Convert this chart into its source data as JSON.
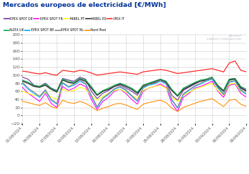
{
  "title": "Mercados europeos de electricidad [€/MWh]",
  "title_color": "#003399",
  "background_color": "#ffffff",
  "ylim": [
    -20,
    200
  ],
  "yticks": [
    -20,
    0,
    20,
    40,
    60,
    80,
    100,
    120,
    140,
    160,
    180,
    200
  ],
  "dates": [
    "01/08/2024",
    "02/08/2024",
    "03/08/2024",
    "04/08/2024",
    "05/08/2024",
    "06/08/2024",
    "07/08/2024",
    "08/08/2024",
    "09/08/2024",
    "10/08/2024",
    "11/08/2024",
    "12/08/2024",
    "13/08/2024",
    "14/08/2024",
    "15/08/2024",
    "16/08/2024",
    "17/08/2024",
    "18/08/2024",
    "19/08/2024",
    "20/08/2024",
    "21/08/2024",
    "22/08/2024",
    "23/08/2024",
    "24/08/2024",
    "25/08/2024",
    "26/08/2024",
    "27/08/2024",
    "28/08/2024",
    "29/08/2024",
    "30/08/2024",
    "31/08/2024",
    "01/09/2024",
    "02/09/2024",
    "03/09/2024",
    "04/09/2024",
    "05/09/2024",
    "06/09/2024",
    "07/09/2024",
    "08/09/2024",
    "09/09/2024"
  ],
  "xtick_dates": [
    "01/08/2024",
    "04/08/2024",
    "07/08/2024",
    "10/08/2024",
    "13/08/2024",
    "16/08/2024",
    "19/08/2024",
    "22/08/2024",
    "25/08/2024",
    "28/08/2024",
    "31/08/2024",
    "03/09/2024",
    "06/09/2024",
    "09/09/2024"
  ],
  "series": {
    "EPEX SPOT DE": {
      "color": "#7030a0",
      "lw": 0.8,
      "data": [
        95,
        90,
        75,
        72,
        80,
        68,
        62,
        92,
        88,
        85,
        95,
        90,
        60,
        42,
        55,
        62,
        72,
        75,
        68,
        60,
        50,
        75,
        80,
        85,
        90,
        85,
        50,
        38,
        62,
        70,
        78,
        85,
        90,
        95,
        75,
        62,
        90,
        92,
        70,
        62
      ]
    },
    "EPEX SPOT FR": {
      "color": "#ff00ff",
      "lw": 0.8,
      "data": [
        70,
        55,
        45,
        35,
        55,
        30,
        20,
        72,
        62,
        68,
        78,
        72,
        40,
        15,
        35,
        45,
        60,
        65,
        55,
        40,
        28,
        60,
        68,
        72,
        78,
        70,
        30,
        10,
        45,
        55,
        68,
        72,
        78,
        85,
        60,
        45,
        75,
        78,
        55,
        45
      ]
    },
    "MIBEL PT": {
      "color": "#ffff00",
      "lw": 0.8,
      "data": [
        60,
        55,
        50,
        48,
        58,
        45,
        40,
        65,
        60,
        62,
        70,
        65,
        50,
        38,
        48,
        55,
        62,
        65,
        58,
        50,
        42,
        62,
        68,
        72,
        75,
        68,
        45,
        35,
        50,
        58,
        65,
        70,
        75,
        80,
        62,
        50,
        78,
        80,
        60,
        55
      ]
    },
    "MIBEL ES": {
      "color": "#333333",
      "lw": 1.1,
      "data": [
        85,
        80,
        72,
        70,
        75,
        65,
        58,
        88,
        82,
        80,
        90,
        85,
        68,
        50,
        60,
        65,
        72,
        78,
        72,
        65,
        55,
        72,
        78,
        82,
        88,
        82,
        62,
        48,
        65,
        72,
        80,
        85,
        88,
        92,
        72,
        60,
        88,
        90,
        68,
        60
      ]
    },
    "IPEX IT": {
      "color": "#ff2222",
      "lw": 0.9,
      "data": [
        110,
        108,
        105,
        103,
        106,
        102,
        100,
        112,
        110,
        108,
        112,
        110,
        105,
        100,
        102,
        104,
        106,
        108,
        106,
        104,
        102,
        108,
        110,
        112,
        114,
        112,
        108,
        104,
        106,
        108,
        110,
        112,
        114,
        116,
        112,
        108,
        130,
        135,
        112,
        108
      ]
    },
    "N2EX UK": {
      "color": "#00aa44",
      "lw": 0.8,
      "data": [
        88,
        82,
        75,
        72,
        78,
        68,
        60,
        90,
        85,
        82,
        92,
        88,
        72,
        52,
        62,
        68,
        75,
        80,
        75,
        68,
        58,
        75,
        80,
        85,
        90,
        85,
        65,
        50,
        68,
        75,
        82,
        88,
        90,
        95,
        75,
        62,
        90,
        92,
        72,
        65
      ]
    },
    "EPEX SPOT BE": {
      "color": "#00aaff",
      "lw": 0.8,
      "data": [
        80,
        65,
        55,
        45,
        62,
        38,
        28,
        80,
        70,
        75,
        85,
        78,
        48,
        20,
        42,
        52,
        65,
        70,
        62,
        48,
        35,
        68,
        75,
        78,
        85,
        78,
        38,
        18,
        52,
        62,
        72,
        78,
        85,
        90,
        68,
        52,
        82,
        85,
        62,
        52
      ]
    },
    "EPEX SPOT NL": {
      "color": "#888888",
      "lw": 0.8,
      "data": [
        82,
        68,
        58,
        48,
        64,
        40,
        30,
        82,
        72,
        78,
        88,
        80,
        50,
        22,
        44,
        54,
        67,
        72,
        64,
        50,
        37,
        70,
        77,
        80,
        87,
        80,
        40,
        20,
        54,
        64,
        74,
        80,
        87,
        92,
        70,
        54,
        84,
        87,
        64,
        54
      ]
    },
    "Nord Pool": {
      "color": "#ff8c00",
      "lw": 0.8,
      "data": [
        35,
        32,
        28,
        25,
        32,
        22,
        18,
        38,
        32,
        30,
        35,
        30,
        22,
        12,
        18,
        22,
        28,
        30,
        26,
        20,
        15,
        28,
        32,
        35,
        38,
        32,
        18,
        10,
        20,
        25,
        30,
        35,
        38,
        42,
        32,
        22,
        38,
        40,
        28,
        22
      ]
    }
  },
  "legend": [
    {
      "label": "EPEX SPOT DE",
      "color": "#7030a0"
    },
    {
      "label": "EPEX SPOT FR",
      "color": "#ff00ff"
    },
    {
      "label": "MIBEL PT",
      "color": "#ffff00"
    },
    {
      "label": "MIBEL ES",
      "color": "#333333"
    },
    {
      "label": "IPEX IT",
      "color": "#ff2222"
    },
    {
      "label": "N2EX UK",
      "color": "#00aa44"
    },
    {
      "label": "EPEX SPOT BE",
      "color": "#00aaff"
    },
    {
      "label": "EPEX SPOT NL",
      "color": "#888888"
    },
    {
      "label": "Nord Pool",
      "color": "#ff8c00"
    }
  ]
}
